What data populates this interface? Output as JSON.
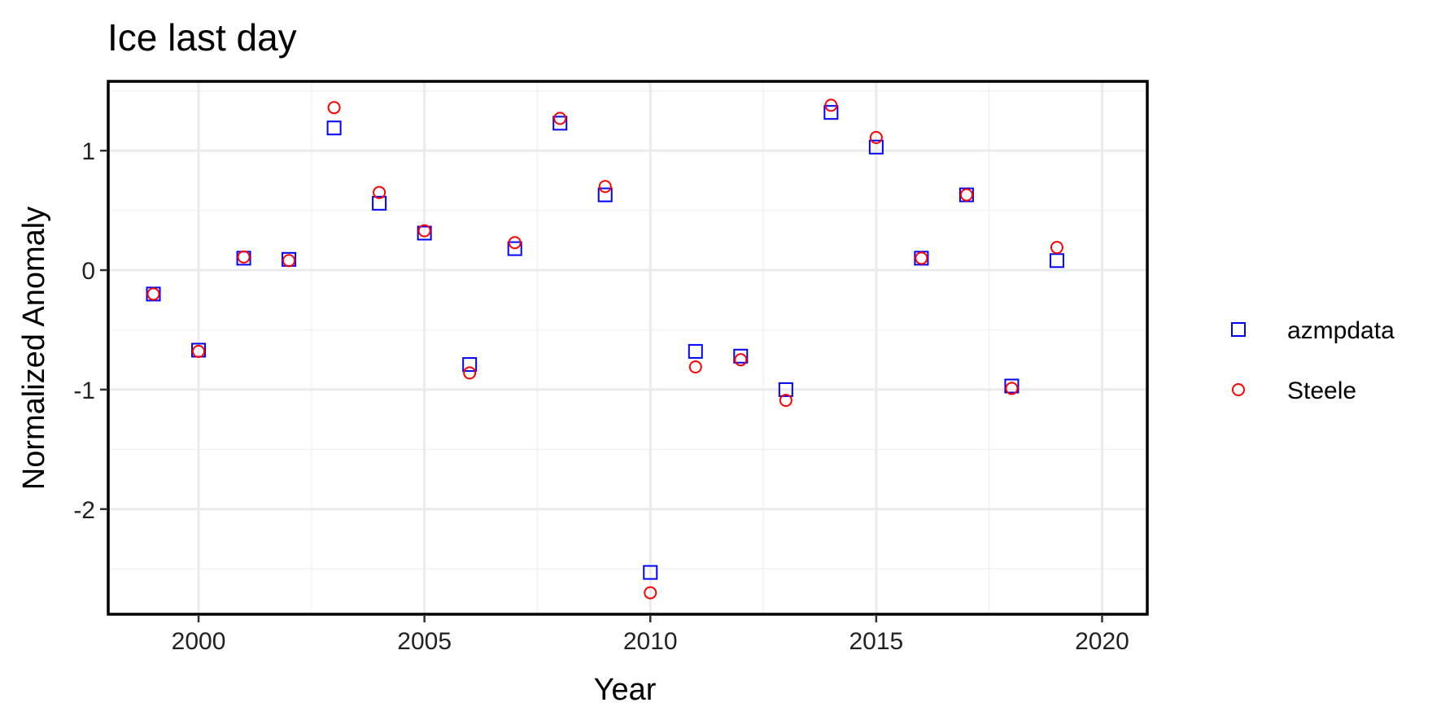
{
  "chart_data": {
    "type": "scatter",
    "title": "Ice last day",
    "xlabel": "Year",
    "ylabel": "Normalized Anomaly",
    "xlim": [
      1998,
      2021
    ],
    "ylim": [
      -2.88,
      1.58
    ],
    "x_ticks": [
      2000,
      2005,
      2010,
      2015,
      2020
    ],
    "y_ticks": [
      -2,
      -1,
      0,
      1
    ],
    "x_tick_labels": [
      "2000",
      "2005",
      "2010",
      "2015",
      "2020"
    ],
    "y_tick_labels": [
      "-2",
      "-1",
      "0",
      "1"
    ],
    "grid": true,
    "legend_position": "right",
    "series": [
      {
        "name": "azmpdata",
        "marker": "square",
        "color": "#0000ff",
        "x": [
          1999,
          2000,
          2001,
          2002,
          2003,
          2004,
          2005,
          2006,
          2007,
          2008,
          2009,
          2010,
          2011,
          2012,
          2013,
          2014,
          2015,
          2016,
          2017,
          2018,
          2019
        ],
        "y": [
          -0.2,
          -0.67,
          0.1,
          0.09,
          1.19,
          0.56,
          0.31,
          -0.79,
          0.18,
          1.23,
          0.63,
          -2.53,
          -0.68,
          -0.72,
          -1.0,
          1.32,
          1.03,
          0.1,
          0.63,
          -0.97,
          0.08
        ]
      },
      {
        "name": "Steele",
        "marker": "circle",
        "color": "#ff0000",
        "x": [
          1999,
          2000,
          2001,
          2002,
          2003,
          2004,
          2005,
          2006,
          2007,
          2008,
          2009,
          2010,
          2011,
          2012,
          2013,
          2014,
          2015,
          2016,
          2017,
          2018,
          2019
        ],
        "y": [
          -0.2,
          -0.68,
          0.11,
          0.08,
          1.36,
          0.65,
          0.33,
          -0.86,
          0.23,
          1.27,
          0.7,
          -2.7,
          -0.81,
          -0.75,
          -1.09,
          1.38,
          1.11,
          0.1,
          0.63,
          -0.99,
          0.19
        ]
      }
    ]
  }
}
